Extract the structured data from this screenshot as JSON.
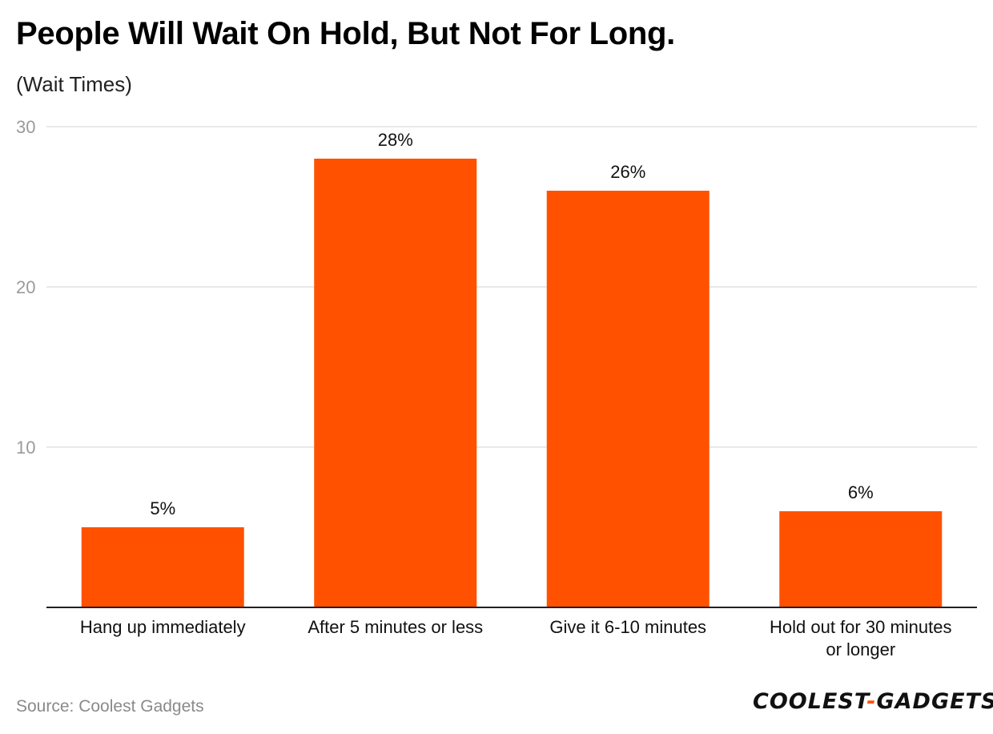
{
  "title": "People Will Wait On Hold, But Not For Long.",
  "subtitle": "(Wait Times)",
  "source": "Source: Coolest Gadgets",
  "logo": {
    "left": "COOLEST",
    "dash": "-",
    "right": "GADGETS"
  },
  "chart_data": {
    "type": "bar",
    "categories": [
      [
        "Hang up immediately"
      ],
      [
        "After 5 minutes or less"
      ],
      [
        "Give it 6-10 minutes"
      ],
      [
        "Hold out for 30 minutes",
        "or longer"
      ]
    ],
    "values": [
      5,
      28,
      26,
      6
    ],
    "data_labels": [
      "5%",
      "28%",
      "26%",
      "6%"
    ],
    "ylim": [
      0,
      30
    ],
    "yticks": [
      10,
      20,
      30
    ],
    "grid": true,
    "bar_color": "#ff5100",
    "grid_color": "#e0e0e0",
    "axis_color": "#222222",
    "tick_label_color": "#9a9a9a"
  }
}
